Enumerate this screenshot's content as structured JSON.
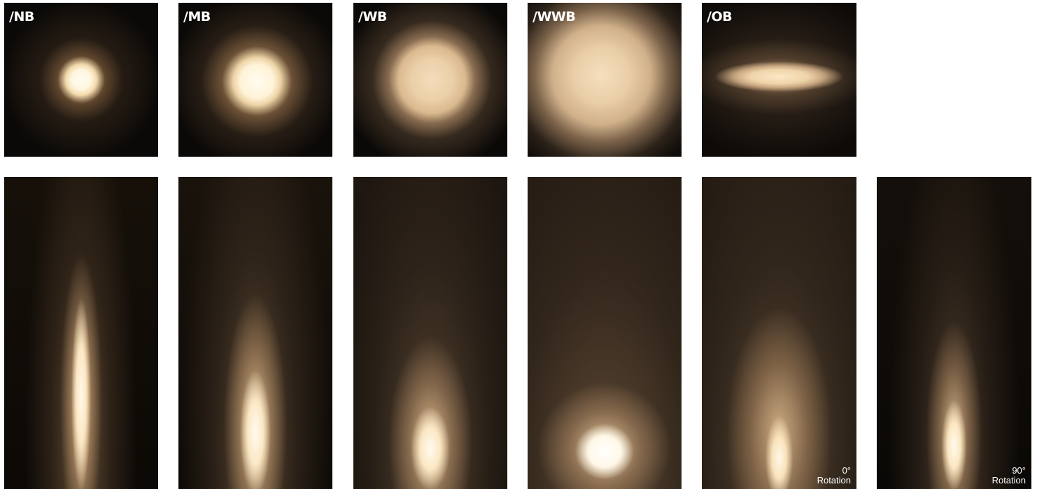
{
  "spots": [
    {
      "id": "nb",
      "label": "/NB"
    },
    {
      "id": "mb",
      "label": "/MB"
    },
    {
      "id": "wb",
      "label": "/WB"
    },
    {
      "id": "wwb",
      "label": "/WWB"
    },
    {
      "id": "ob",
      "label": "/OB"
    }
  ],
  "beams": [
    {
      "id": "nb"
    },
    {
      "id": "mb"
    },
    {
      "id": "wb"
    },
    {
      "id": "wwb"
    },
    {
      "id": "ob-0",
      "rotation_angle": "0°",
      "rotation_word": "Rotation"
    },
    {
      "id": "ob-90",
      "rotation_angle": "90°",
      "rotation_word": "Rotation"
    }
  ],
  "colors": {
    "background": "#ffffff",
    "light_warm": "#fbe6c2",
    "dark": "#0b0907",
    "label": "#ffffff"
  }
}
